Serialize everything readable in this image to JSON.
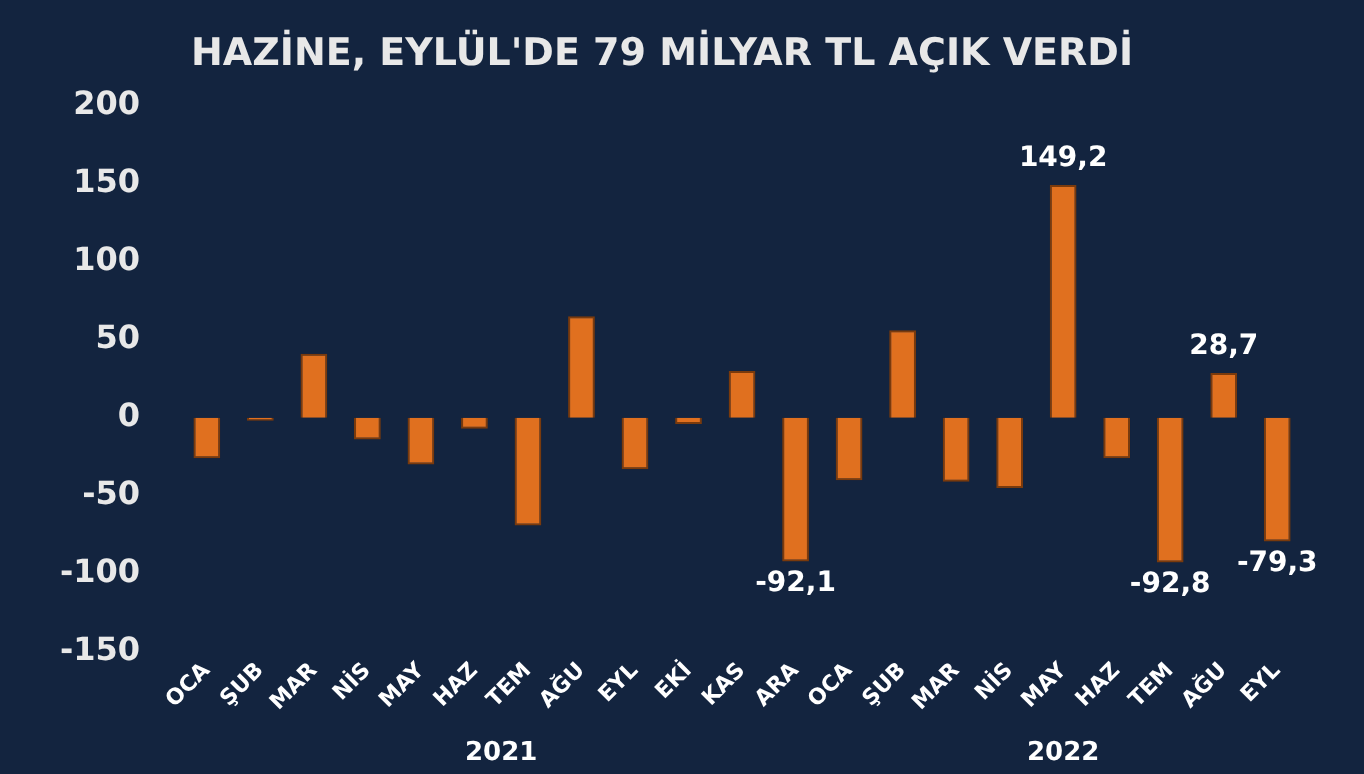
{
  "chart_data": {
    "type": "bar",
    "title": "HAZİNE, EYLÜL'DE 79 MİLYAR TL AÇIK VERDİ",
    "categories": [
      "OCA",
      "ŞUB",
      "MAR",
      "NİS",
      "MAY",
      "HAZ",
      "TEM",
      "AĞU",
      "EYL",
      "EKİ",
      "KAS",
      "ARA",
      "OCA",
      "ŞUB",
      "MAR",
      "NİS",
      "MAY",
      "HAZ",
      "TEM",
      "AĞU",
      "EYL"
    ],
    "values": [
      -26,
      -2,
      41,
      -14,
      -30,
      -7,
      -69,
      65,
      -33,
      -4,
      30,
      -92.1,
      -40,
      56,
      -41,
      -45,
      149.2,
      -26,
      -92.8,
      28.7,
      -79.3
    ],
    "value_labels": [
      null,
      null,
      null,
      null,
      null,
      null,
      null,
      null,
      null,
      null,
      null,
      "-92,1",
      null,
      null,
      null,
      null,
      "149,2",
      null,
      "-92,8",
      "28,7",
      "-79,3"
    ],
    "color": "#e0701f",
    "ylim": [
      -150,
      200
    ],
    "yticks": [
      -150,
      -100,
      -50,
      0,
      50,
      100,
      150,
      200
    ],
    "grid": false,
    "annotations": [
      "2021",
      "2022"
    ]
  }
}
